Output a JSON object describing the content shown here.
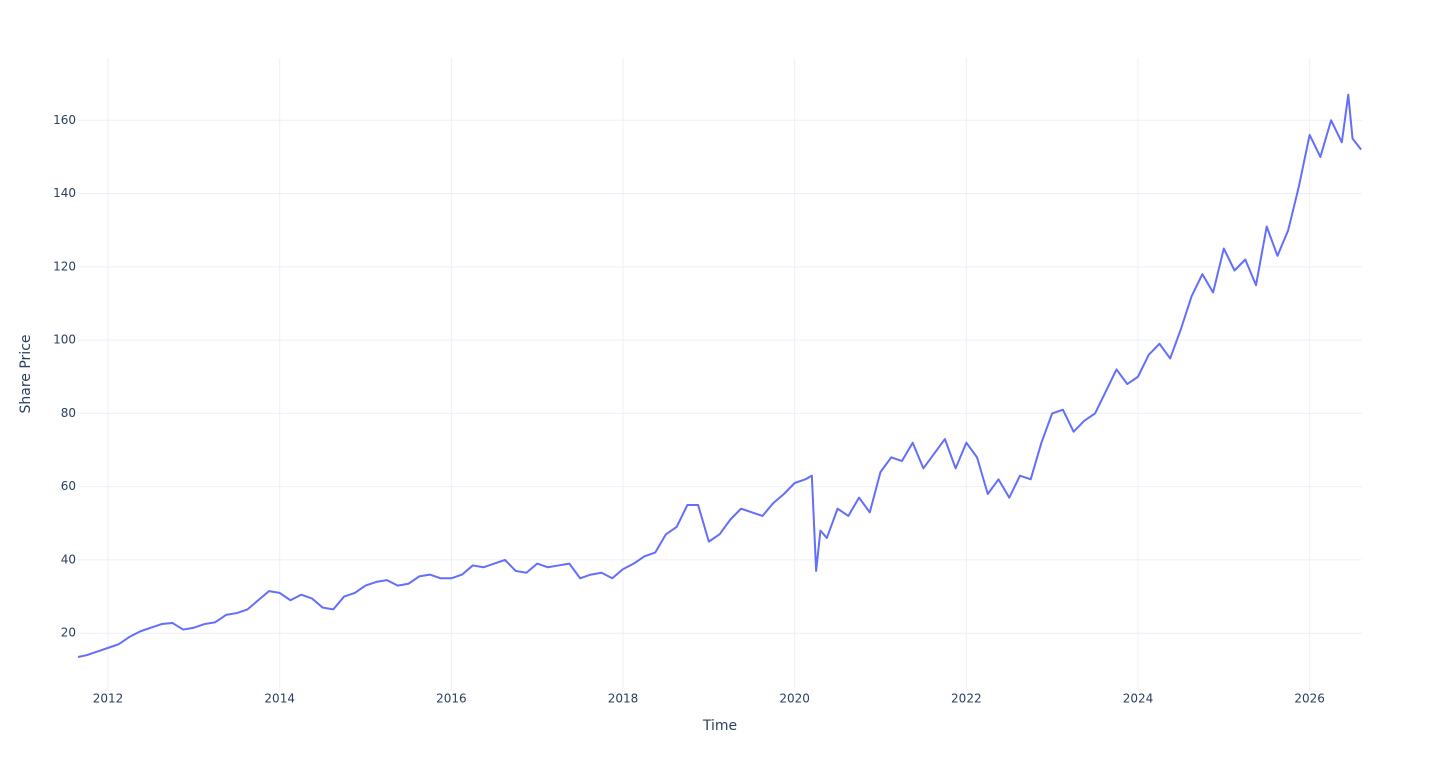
{
  "chart_data": {
    "type": "line",
    "x_label": "Time",
    "y_label": "Share Price",
    "xlim": [
      2011.65,
      2026.61
    ],
    "ylim": [
      4.5,
      177
    ],
    "xticks": [
      2012,
      2014,
      2016,
      2018,
      2020,
      2022,
      2024,
      2026
    ],
    "yticks": [
      20,
      40,
      60,
      80,
      100,
      120,
      140,
      160
    ],
    "grid": true,
    "series": [
      {
        "name": "Share Price",
        "color": "#636efa",
        "x": [
          2011.65,
          2011.75,
          2011.875,
          2012.0,
          2012.125,
          2012.25,
          2012.375,
          2012.5,
          2012.625,
          2012.75,
          2012.875,
          2013.0,
          2013.125,
          2013.25,
          2013.375,
          2013.5,
          2013.625,
          2013.75,
          2013.875,
          2014.0,
          2014.125,
          2014.25,
          2014.375,
          2014.5,
          2014.625,
          2014.75,
          2014.875,
          2015.0,
          2015.125,
          2015.25,
          2015.375,
          2015.5,
          2015.625,
          2015.75,
          2015.875,
          2016.0,
          2016.125,
          2016.25,
          2016.375,
          2016.5,
          2016.625,
          2016.75,
          2016.875,
          2017.0,
          2017.125,
          2017.25,
          2017.375,
          2017.5,
          2017.625,
          2017.75,
          2017.875,
          2018.0,
          2018.125,
          2018.25,
          2018.375,
          2018.5,
          2018.625,
          2018.75,
          2018.875,
          2019.0,
          2019.125,
          2019.25,
          2019.375,
          2019.5,
          2019.625,
          2019.75,
          2019.875,
          2020.0,
          2020.125,
          2020.2,
          2020.25,
          2020.3,
          2020.375,
          2020.5,
          2020.625,
          2020.75,
          2020.875,
          2021.0,
          2021.125,
          2021.25,
          2021.375,
          2021.5,
          2021.625,
          2021.75,
          2021.875,
          2022.0,
          2022.125,
          2022.25,
          2022.375,
          2022.5,
          2022.625,
          2022.75,
          2022.875,
          2023.0,
          2023.125,
          2023.25,
          2023.375,
          2023.5,
          2023.625,
          2023.75,
          2023.875,
          2024.0,
          2024.125,
          2024.25,
          2024.375,
          2024.5,
          2024.625,
          2024.75,
          2024.875,
          2025.0,
          2025.125,
          2025.25,
          2025.375,
          2025.5,
          2025.625,
          2025.75,
          2025.875,
          2026.0,
          2026.125,
          2026.25,
          2026.375,
          2026.45,
          2026.5,
          2026.6
        ],
        "values": [
          13.5,
          14,
          15,
          16,
          17,
          19,
          20.5,
          21.5,
          22.5,
          22.8,
          21,
          21.5,
          22.5,
          23,
          25,
          25.5,
          26.5,
          29,
          31.5,
          31,
          29,
          30.5,
          29.5,
          27,
          26.5,
          30,
          31,
          33,
          34,
          34.5,
          33,
          33.5,
          35.5,
          36,
          35,
          35,
          36,
          38.5,
          38,
          39,
          40,
          37,
          36.5,
          39,
          38,
          38.5,
          39,
          35,
          36,
          36.5,
          35,
          37.5,
          39,
          41,
          42,
          47,
          49,
          55,
          55,
          45,
          47,
          51,
          54,
          53,
          52,
          55.5,
          58,
          61,
          62,
          63,
          37,
          48,
          46,
          54,
          52,
          57,
          53,
          64,
          68,
          67,
          72,
          65,
          69,
          73,
          65,
          72,
          68,
          58,
          62,
          57,
          63,
          62,
          72,
          80,
          81,
          75,
          78,
          80,
          86,
          92,
          88,
          90,
          96,
          99,
          95,
          103,
          112,
          118,
          113,
          125,
          119,
          122,
          115,
          131,
          123,
          130,
          142,
          156,
          150,
          160,
          154,
          167,
          155,
          152
        ]
      }
    ]
  }
}
